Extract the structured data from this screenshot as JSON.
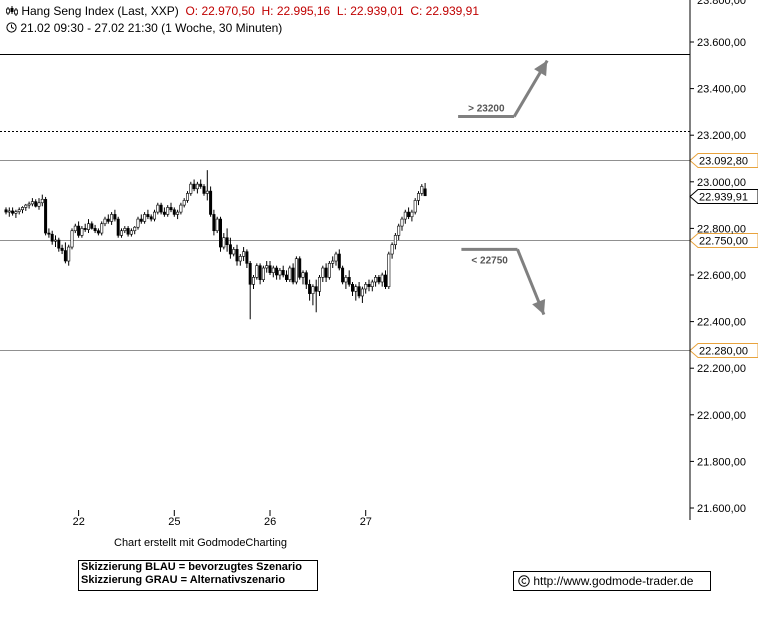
{
  "header": {
    "symbol_icon": "candlestick-icon",
    "title": "Hang Seng Index (Last, XXP)",
    "open": "O: 22.970,50",
    "high": "H: 22.995,16",
    "low": "L: 22.939,01",
    "close": "C: 22.939,91",
    "clock_icon": "clock-icon",
    "range": "21.02 09:30 - 27.02 21:30 (1 Woche, 30 Minuten)"
  },
  "footer": {
    "credit": "Chart erstellt mit GodmodeCharting",
    "legend_blue": "Skizzierung BLAU = bevorzugtes Szenario",
    "legend_grey": "Skizzierung GRAU = Alternativszenario",
    "copyright_icon": "copyright-icon",
    "url": "http://www.godmode-trader.de"
  },
  "colors": {
    "accent": "#e8a33d",
    "arrow": "#808080",
    "header_values": "#c00000"
  },
  "chart_data": {
    "type": "candlestick",
    "interval": "30 Minuten",
    "ylim": [
      21550,
      23650
    ],
    "y_ticks": [
      {
        "value": 23600,
        "label": "23.600,00"
      },
      {
        "value": 23400,
        "label": "23.400,00"
      },
      {
        "value": 23200,
        "label": "23.200,00"
      },
      {
        "value": 23000,
        "label": "23.000,00"
      },
      {
        "value": 22800,
        "label": "22.800,00"
      },
      {
        "value": 22600,
        "label": "22.600,00"
      },
      {
        "value": 22400,
        "label": "22.400,00"
      },
      {
        "value": 22200,
        "label": "22.200,00"
      },
      {
        "value": 22000,
        "label": "22.000,00"
      },
      {
        "value": 21800,
        "label": "21.800,00"
      },
      {
        "value": 21600,
        "label": "21.600,00"
      }
    ],
    "x_ticks": [
      {
        "bar": 22,
        "label": "22"
      },
      {
        "bar": 51,
        "label": "25"
      },
      {
        "bar": 80,
        "label": "26"
      },
      {
        "bar": 109,
        "label": "27"
      }
    ],
    "levels": [
      {
        "value": 23550,
        "style": "solid"
      },
      {
        "value": 23220,
        "style": "dotted"
      },
      {
        "value": 23092.8,
        "style": "solid-grey",
        "label": "23.092,80"
      },
      {
        "value": 22750,
        "style": "solid-grey",
        "label": "22.750,00"
      },
      {
        "value": 22280,
        "style": "solid-grey",
        "label": "22.280,00"
      }
    ],
    "last_price": {
      "value": 22939.91,
      "label": "22.939,91"
    },
    "annotations": [
      {
        "text": "> 23200",
        "base_value": 23280,
        "from_bar": 137,
        "to_bar": 154,
        "arrow_to_bar": 164,
        "arrow_to_value": 23520
      },
      {
        "text": "< 22750",
        "base_value": 22710,
        "from_bar": 138,
        "to_bar": 155,
        "arrow_to_bar": 163,
        "arrow_to_value": 22430
      }
    ],
    "candles": [
      [
        22880,
        22890,
        22860,
        22870
      ],
      [
        22870,
        22890,
        22850,
        22875
      ],
      [
        22875,
        22890,
        22855,
        22865
      ],
      [
        22865,
        22880,
        22845,
        22872
      ],
      [
        22872,
        22890,
        22860,
        22880
      ],
      [
        22880,
        22895,
        22865,
        22890
      ],
      [
        22890,
        22905,
        22875,
        22900
      ],
      [
        22900,
        22915,
        22885,
        22905
      ],
      [
        22905,
        22930,
        22895,
        22915
      ],
      [
        22915,
        22925,
        22890,
        22895
      ],
      [
        22895,
        22930,
        22880,
        22910
      ],
      [
        22910,
        22945,
        22895,
        22925
      ],
      [
        22925,
        22935,
        22770,
        22780
      ],
      [
        22780,
        22800,
        22760,
        22775
      ],
      [
        22775,
        22790,
        22730,
        22745
      ],
      [
        22745,
        22770,
        22720,
        22750
      ],
      [
        22750,
        22760,
        22700,
        22715
      ],
      [
        22715,
        22730,
        22690,
        22705
      ],
      [
        22705,
        22740,
        22650,
        22660
      ],
      [
        22660,
        22730,
        22640,
        22720
      ],
      [
        22720,
        22800,
        22710,
        22790
      ],
      [
        22790,
        22820,
        22780,
        22810
      ],
      [
        22810,
        22830,
        22760,
        22770
      ],
      [
        22770,
        22810,
        22760,
        22800
      ],
      [
        22800,
        22820,
        22785,
        22795
      ],
      [
        22795,
        22840,
        22780,
        22820
      ],
      [
        22820,
        22830,
        22795,
        22800
      ],
      [
        22800,
        22815,
        22780,
        22790
      ],
      [
        22790,
        22800,
        22770,
        22780
      ],
      [
        22780,
        22830,
        22770,
        22820
      ],
      [
        22820,
        22850,
        22810,
        22840
      ],
      [
        22840,
        22860,
        22820,
        22830
      ],
      [
        22830,
        22870,
        22815,
        22860
      ],
      [
        22860,
        22880,
        22830,
        22840
      ],
      [
        22840,
        22850,
        22760,
        22770
      ],
      [
        22770,
        22800,
        22760,
        22790
      ],
      [
        22790,
        22810,
        22780,
        22800
      ],
      [
        22800,
        22810,
        22765,
        22775
      ],
      [
        22775,
        22800,
        22765,
        22790
      ],
      [
        22790,
        22810,
        22775,
        22805
      ],
      [
        22805,
        22850,
        22795,
        22840
      ],
      [
        22840,
        22860,
        22820,
        22830
      ],
      [
        22830,
        22870,
        22820,
        22860
      ],
      [
        22860,
        22880,
        22840,
        22850
      ],
      [
        22850,
        22860,
        22830,
        22840
      ],
      [
        22840,
        22880,
        22830,
        22870
      ],
      [
        22870,
        22910,
        22860,
        22900
      ],
      [
        22900,
        22910,
        22860,
        22870
      ],
      [
        22870,
        22890,
        22850,
        22860
      ],
      [
        22860,
        22900,
        22850,
        22890
      ],
      [
        22890,
        22910,
        22870,
        22880
      ],
      [
        22880,
        22890,
        22850,
        22860
      ],
      [
        22860,
        22880,
        22840,
        22870
      ],
      [
        22870,
        22910,
        22860,
        22900
      ],
      [
        22900,
        22930,
        22890,
        22920
      ],
      [
        22920,
        22960,
        22910,
        22950
      ],
      [
        22950,
        23000,
        22940,
        22990
      ],
      [
        22990,
        23010,
        22960,
        22970
      ],
      [
        22970,
        23000,
        22950,
        22990
      ],
      [
        22990,
        23010,
        22970,
        22980
      ],
      [
        22980,
        22990,
        22940,
        22950
      ],
      [
        22950,
        23050,
        22920,
        22960
      ],
      [
        22960,
        22980,
        22850,
        22860
      ],
      [
        22860,
        22880,
        22770,
        22790
      ],
      [
        22790,
        22850,
        22780,
        22840
      ],
      [
        22840,
        22850,
        22700,
        22720
      ],
      [
        22720,
        22780,
        22710,
        22760
      ],
      [
        22760,
        22800,
        22700,
        22730
      ],
      [
        22730,
        22760,
        22670,
        22690
      ],
      [
        22690,
        22720,
        22680,
        22710
      ],
      [
        22710,
        22730,
        22640,
        22660
      ],
      [
        22660,
        22690,
        22640,
        22680
      ],
      [
        22680,
        22720,
        22660,
        22700
      ],
      [
        22700,
        22710,
        22630,
        22650
      ],
      [
        22650,
        22660,
        22410,
        22560
      ],
      [
        22560,
        22600,
        22540,
        22590
      ],
      [
        22590,
        22650,
        22580,
        22640
      ],
      [
        22640,
        22650,
        22560,
        22580
      ],
      [
        22580,
        22640,
        22570,
        22630
      ],
      [
        22630,
        22660,
        22610,
        22640
      ],
      [
        22640,
        22660,
        22600,
        22610
      ],
      [
        22610,
        22640,
        22590,
        22630
      ],
      [
        22630,
        22640,
        22580,
        22600
      ],
      [
        22600,
        22630,
        22580,
        22620
      ],
      [
        22620,
        22640,
        22590,
        22600
      ],
      [
        22600,
        22620,
        22570,
        22580
      ],
      [
        22580,
        22640,
        22570,
        22630
      ],
      [
        22630,
        22650,
        22560,
        22570
      ],
      [
        22570,
        22680,
        22560,
        22670
      ],
      [
        22670,
        22680,
        22580,
        22590
      ],
      [
        22590,
        22620,
        22560,
        22610
      ],
      [
        22610,
        22620,
        22540,
        22560
      ],
      [
        22560,
        22580,
        22490,
        22520
      ],
      [
        22520,
        22560,
        22470,
        22550
      ],
      [
        22550,
        22580,
        22440,
        22530
      ],
      [
        22530,
        22600,
        22510,
        22590
      ],
      [
        22590,
        22640,
        22570,
        22630
      ],
      [
        22630,
        22650,
        22570,
        22590
      ],
      [
        22590,
        22660,
        22580,
        22650
      ],
      [
        22650,
        22680,
        22630,
        22660
      ],
      [
        22660,
        22700,
        22640,
        22690
      ],
      [
        22690,
        22710,
        22620,
        22630
      ],
      [
        22630,
        22640,
        22560,
        22570
      ],
      [
        22570,
        22600,
        22540,
        22590
      ],
      [
        22590,
        22620,
        22550,
        22560
      ],
      [
        22560,
        22570,
        22510,
        22530
      ],
      [
        22530,
        22560,
        22490,
        22550
      ],
      [
        22550,
        22570,
        22500,
        22510
      ],
      [
        22510,
        22550,
        22480,
        22540
      ],
      [
        22540,
        22570,
        22520,
        22560
      ],
      [
        22560,
        22580,
        22530,
        22550
      ],
      [
        22550,
        22580,
        22530,
        22570
      ],
      [
        22570,
        22600,
        22550,
        22590
      ],
      [
        22590,
        22600,
        22560,
        22570
      ],
      [
        22570,
        22610,
        22550,
        22600
      ],
      [
        22600,
        22620,
        22540,
        22550
      ],
      [
        22550,
        22700,
        22540,
        22690
      ],
      [
        22690,
        22740,
        22670,
        22730
      ],
      [
        22730,
        22780,
        22710,
        22770
      ],
      [
        22770,
        22820,
        22750,
        22810
      ],
      [
        22810,
        22850,
        22790,
        22840
      ],
      [
        22840,
        22880,
        22820,
        22870
      ],
      [
        22870,
        22890,
        22840,
        22850
      ],
      [
        22850,
        22880,
        22830,
        22870
      ],
      [
        22870,
        22930,
        22860,
        22920
      ],
      [
        22920,
        22960,
        22900,
        22950
      ],
      [
        22950,
        22990,
        22940,
        22980
      ],
      [
        22970,
        22995,
        22939,
        22940
      ]
    ]
  }
}
